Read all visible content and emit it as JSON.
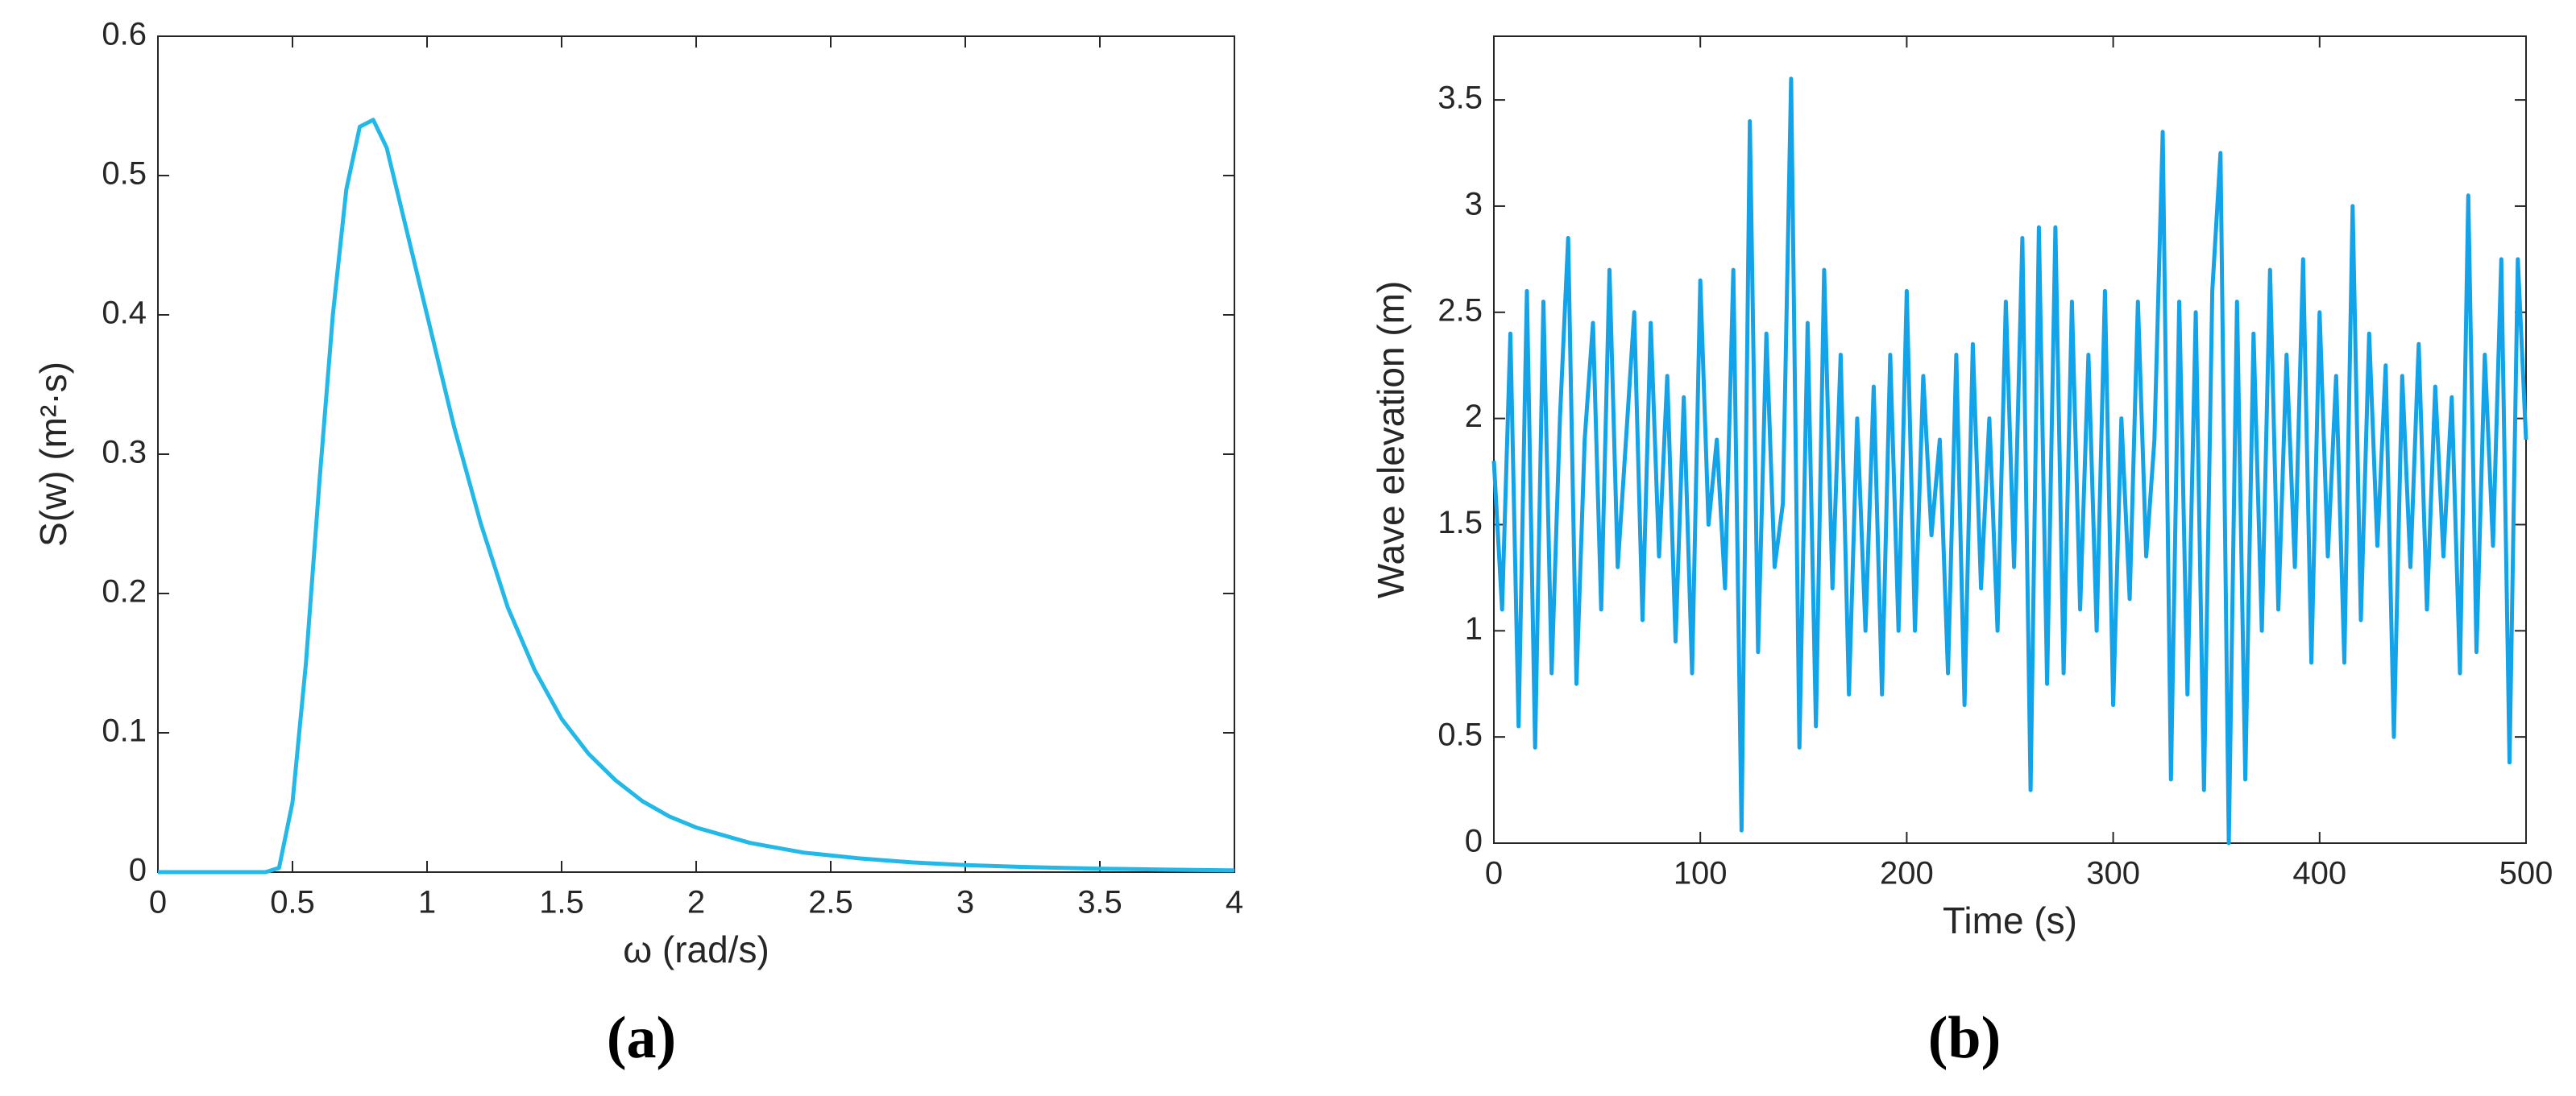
{
  "chart_data": [
    {
      "type": "line",
      "x_label": "ω (rad/s)",
      "y_label": "S(w) (m²·s)",
      "panel_label": "(a)",
      "color": "#22b8e8",
      "x": [
        0,
        0.2,
        0.4,
        0.45,
        0.5,
        0.55,
        0.6,
        0.65,
        0.7,
        0.75,
        0.8,
        0.85,
        0.9,
        0.95,
        1.0,
        1.1,
        1.2,
        1.3,
        1.4,
        1.5,
        1.6,
        1.7,
        1.8,
        1.9,
        2.0,
        2.2,
        2.4,
        2.6,
        2.8,
        3.0,
        3.25,
        3.5,
        3.75,
        4.0
      ],
      "values": [
        0,
        0,
        0,
        0.003,
        0.05,
        0.15,
        0.28,
        0.4,
        0.49,
        0.535,
        0.54,
        0.52,
        0.48,
        0.44,
        0.4,
        0.32,
        0.25,
        0.19,
        0.145,
        0.11,
        0.085,
        0.066,
        0.051,
        0.04,
        0.032,
        0.021,
        0.014,
        0.01,
        0.007,
        0.005,
        0.0035,
        0.0025,
        0.0018,
        0.0013
      ],
      "xlim": [
        0,
        4
      ],
      "ylim": [
        0,
        0.6
      ],
      "xticks": [
        0,
        0.5,
        1,
        1.5,
        2,
        2.5,
        3,
        3.5,
        4
      ],
      "yticks": [
        0,
        0.1,
        0.2,
        0.3,
        0.4,
        0.5,
        0.6
      ]
    },
    {
      "type": "line",
      "x_label": "Time (s)",
      "y_label": "Wave elevation (m)",
      "panel_label": "(b)",
      "color": "#12a3e8",
      "x": [
        0,
        4,
        8,
        12,
        16,
        20,
        24,
        28,
        32,
        36,
        40,
        44,
        48,
        52,
        56,
        60,
        64,
        68,
        72,
        76,
        80,
        84,
        88,
        92,
        96,
        100,
        104,
        108,
        112,
        116,
        120,
        124,
        128,
        132,
        136,
        140,
        144,
        148,
        152,
        156,
        160,
        164,
        168,
        172,
        176,
        180,
        184,
        188,
        192,
        196,
        200,
        204,
        208,
        212,
        216,
        220,
        224,
        228,
        232,
        236,
        240,
        244,
        248,
        252,
        256,
        260,
        264,
        268,
        272,
        276,
        280,
        284,
        288,
        292,
        296,
        300,
        304,
        308,
        312,
        316,
        320,
        324,
        328,
        332,
        336,
        340,
        344,
        348,
        352,
        356,
        360,
        364,
        368,
        372,
        376,
        380,
        384,
        388,
        392,
        396,
        400,
        404,
        408,
        412,
        416,
        420,
        424,
        428,
        432,
        436,
        440,
        444,
        448,
        452,
        456,
        460,
        464,
        468,
        472,
        476,
        480,
        484,
        488,
        492,
        496,
        500
      ],
      "values": [
        1.8,
        1.1,
        2.4,
        0.55,
        2.6,
        0.45,
        2.55,
        0.8,
        2.0,
        2.85,
        0.75,
        1.9,
        2.45,
        1.1,
        2.7,
        1.3,
        1.9,
        2.5,
        1.05,
        2.45,
        1.35,
        2.2,
        0.95,
        2.1,
        0.8,
        2.65,
        1.5,
        1.9,
        1.2,
        2.7,
        0.06,
        3.4,
        0.9,
        2.4,
        1.3,
        1.6,
        3.6,
        0.45,
        2.45,
        0.55,
        2.7,
        1.2,
        2.3,
        0.7,
        2.0,
        1.0,
        2.15,
        0.7,
        2.3,
        1.0,
        2.6,
        1.0,
        2.2,
        1.45,
        1.9,
        0.8,
        2.3,
        0.65,
        2.35,
        1.2,
        2.0,
        1.0,
        2.55,
        1.3,
        2.85,
        0.25,
        2.9,
        0.75,
        2.9,
        0.8,
        2.55,
        1.1,
        2.3,
        1.0,
        2.6,
        0.65,
        2.0,
        1.15,
        2.55,
        1.35,
        1.9,
        3.35,
        0.3,
        2.55,
        0.7,
        2.5,
        0.25,
        2.6,
        3.25,
        0.0,
        2.55,
        0.3,
        2.4,
        1.0,
        2.7,
        1.1,
        2.3,
        1.3,
        2.75,
        0.85,
        2.5,
        1.35,
        2.2,
        0.85,
        3.0,
        1.05,
        2.4,
        1.4,
        2.25,
        0.5,
        2.2,
        1.3,
        2.35,
        1.1,
        2.15,
        1.35,
        2.1,
        0.8,
        3.05,
        0.9,
        2.3,
        1.4,
        2.75,
        0.38,
        2.75,
        1.9
      ],
      "xlim": [
        0,
        500
      ],
      "ylim": [
        0,
        3.8
      ],
      "xticks": [
        0,
        100,
        200,
        300,
        400,
        500
      ],
      "yticks": [
        0,
        0.5,
        1,
        1.5,
        2,
        2.5,
        3,
        3.5
      ]
    }
  ]
}
